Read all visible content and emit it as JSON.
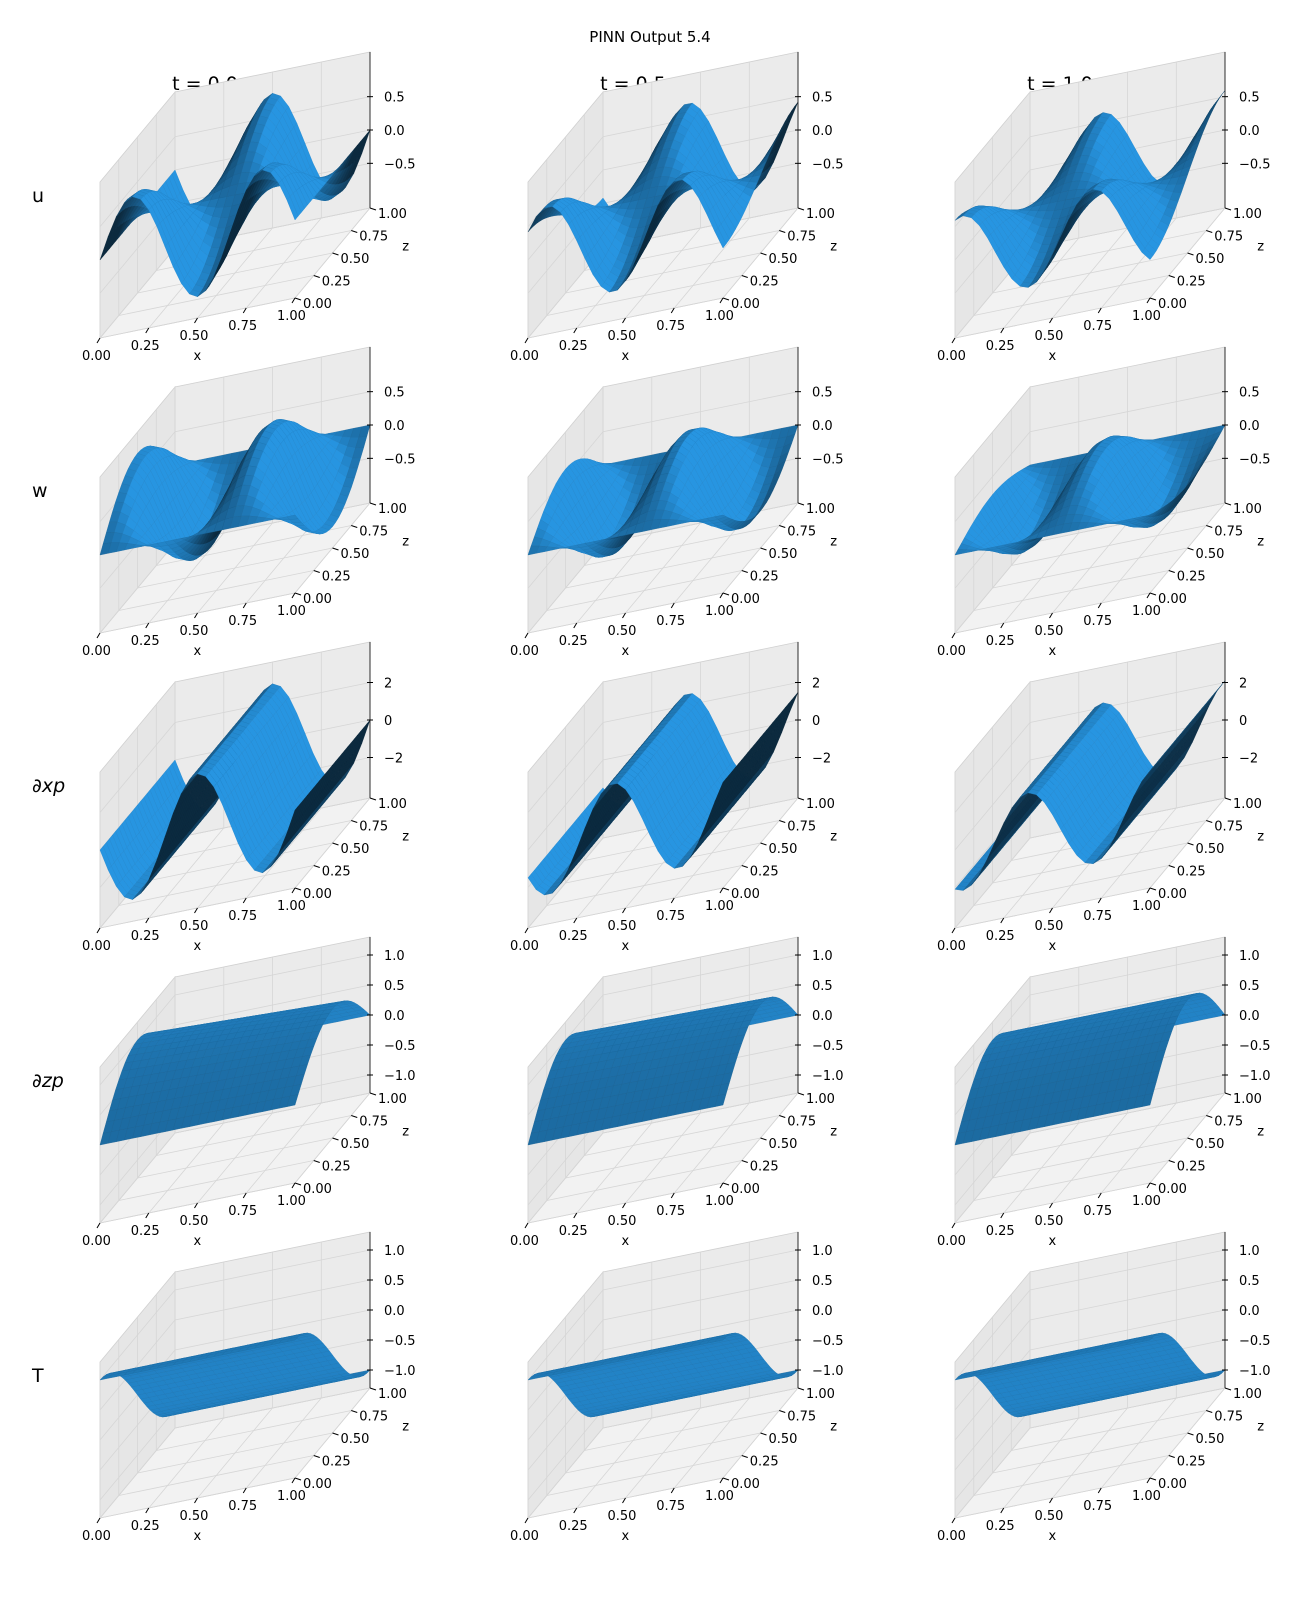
{
  "figure": {
    "title": "PINN Output 5.4"
  },
  "chart_data": {
    "type": "surface-grid",
    "title": "PINN Output 5.4",
    "column_titles": [
      "t = 0.0",
      "t = 0.5",
      "t = 1.0"
    ],
    "times": [
      0.0,
      0.5,
      1.0
    ],
    "row_labels": [
      "u",
      "w",
      "∂xp",
      "∂zp",
      "T"
    ],
    "xlabel": "x",
    "zlabel": "z",
    "x_ticks": [
      "0.00",
      "0.25",
      "0.50",
      "0.75",
      "1.00"
    ],
    "z_ticks": [
      "0.00",
      "0.25",
      "0.50",
      "0.75",
      "1.00"
    ],
    "xlim": [
      0,
      1
    ],
    "zlim": [
      0,
      1
    ],
    "surface_color": "#1f77b4",
    "grid": true,
    "rows": [
      {
        "field": "u",
        "vlim": [
          -0.9,
          0.9
        ],
        "v_ticks": [
          "0.5",
          "0.0",
          "−0.5"
        ],
        "v_tick_values": [
          0.5,
          0.0,
          -0.5
        ]
      },
      {
        "field": "w",
        "vlim": [
          -0.9,
          0.9
        ],
        "v_ticks": [
          "0.5",
          "0.0",
          "−0.5"
        ],
        "v_tick_values": [
          0.5,
          0.0,
          -0.5
        ]
      },
      {
        "field": "∂xp",
        "vlim": [
          -3.2,
          3.2
        ],
        "v_ticks": [
          "2",
          "0",
          "−2"
        ],
        "v_tick_values": [
          2,
          0,
          -2
        ]
      },
      {
        "field": "∂zp",
        "vlim": [
          -1.0,
          1.0
        ],
        "v_ticks": [
          "1.0",
          "0.5",
          "0.0",
          "−0.5",
          "−1.0"
        ],
        "v_tick_values": [
          1.0,
          0.5,
          0.0,
          -0.5,
          -1.0
        ]
      },
      {
        "field": "T",
        "vlim": [
          -1.0,
          1.0
        ],
        "v_ticks": [
          "1.0",
          "0.5",
          "0.0",
          "−0.5",
          "−1.0"
        ],
        "v_tick_values": [
          1.0,
          0.5,
          0.0,
          -0.5,
          -1.0
        ]
      }
    ]
  }
}
